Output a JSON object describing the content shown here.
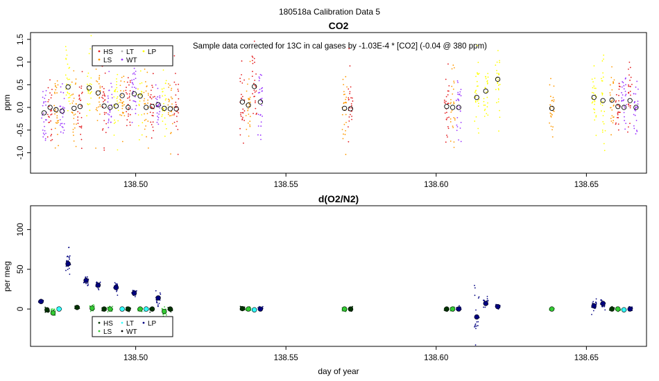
{
  "figure": {
    "suptitle": "180518a   Calibration Data 5",
    "xlabel": "day of year"
  },
  "legend": {
    "entries": [
      {
        "key": "HS",
        "label": "HS",
        "color": "#e31a1c"
      },
      {
        "key": "LT",
        "label": "LT",
        "color": "#b3b3b3"
      },
      {
        "key": "LP",
        "label": "LP",
        "color": "#ffff00"
      },
      {
        "key": "LS",
        "label": "LS",
        "color": "#ff9900"
      },
      {
        "key": "WT",
        "label": "WT",
        "color": "#9933ff"
      }
    ],
    "entries_o2": [
      {
        "key": "HS",
        "label": "HS",
        "color": "#003300"
      },
      {
        "key": "LT",
        "label": "LT",
        "color": "#33ffff"
      },
      {
        "key": "LP",
        "label": "LP",
        "color": "#000080"
      },
      {
        "key": "LS",
        "label": "LS",
        "color": "#33cc33"
      },
      {
        "key": "WT",
        "label": "WT",
        "color": "#000000"
      }
    ]
  },
  "chart_data": [
    {
      "type": "scatter",
      "title": "CO2",
      "annotation": "Sample data corrected for 13C in cal gases by -1.03E-4 * [CO2] (-0.04 @ 380 ppm)",
      "xlabel": "",
      "ylabel": "ppm",
      "xlim": [
        138.465,
        138.67
      ],
      "ylim": [
        -1.45,
        1.65
      ],
      "xticks": [
        138.5,
        138.55,
        138.6,
        138.65
      ],
      "xtick_labels": [
        "138.50",
        "138.55",
        "138.60",
        "138.65"
      ],
      "yticks": [
        -1.0,
        -0.5,
        0.0,
        0.5,
        1.0,
        1.5
      ],
      "ytick_labels": [
        "-1.0",
        "-0.5",
        "0.0",
        "0.5",
        "1.0",
        "1.5"
      ],
      "clusters": [
        {
          "x": 138.4695,
          "color": "#9933ff",
          "mean": -0.12,
          "sd": 0.38
        },
        {
          "x": 138.4715,
          "color": "#e31a1c",
          "mean": 0.0,
          "sd": 0.4
        },
        {
          "x": 138.4735,
          "color": "#ff9900",
          "mean": -0.05,
          "sd": 0.35
        },
        {
          "x": 138.4755,
          "color": "#9933ff",
          "mean": -0.08,
          "sd": 0.32
        },
        {
          "x": 138.4775,
          "color": "#ffff00",
          "mean": 0.45,
          "sd": 0.42
        },
        {
          "x": 138.4795,
          "color": "#ff9900",
          "mean": -0.02,
          "sd": 0.38
        },
        {
          "x": 138.4815,
          "color": "#e31a1c",
          "mean": 0.02,
          "sd": 0.4
        },
        {
          "x": 138.4845,
          "color": "#ffff00",
          "mean": 0.43,
          "sd": 0.4
        },
        {
          "x": 138.4875,
          "color": "#ff9900",
          "mean": 0.32,
          "sd": 0.35
        },
        {
          "x": 138.4895,
          "color": "#e31a1c",
          "mean": 0.03,
          "sd": 0.38
        },
        {
          "x": 138.4915,
          "color": "#9933ff",
          "mean": 0.0,
          "sd": 0.35
        },
        {
          "x": 138.4935,
          "color": "#ffff00",
          "mean": 0.03,
          "sd": 0.4
        },
        {
          "x": 138.4955,
          "color": "#ff9900",
          "mean": 0.26,
          "sd": 0.35
        },
        {
          "x": 138.4975,
          "color": "#e31a1c",
          "mean": 0.0,
          "sd": 0.38
        },
        {
          "x": 138.4995,
          "color": "#9933ff",
          "mean": 0.3,
          "sd": 0.35
        },
        {
          "x": 138.5015,
          "color": "#ffff00",
          "mean": 0.25,
          "sd": 0.4
        },
        {
          "x": 138.5035,
          "color": "#ff9900",
          "mean": 0.0,
          "sd": 0.35
        },
        {
          "x": 138.5055,
          "color": "#e31a1c",
          "mean": 0.02,
          "sd": 0.38
        },
        {
          "x": 138.5075,
          "color": "#9933ff",
          "mean": 0.06,
          "sd": 0.35
        },
        {
          "x": 138.5095,
          "color": "#ffff00",
          "mean": -0.02,
          "sd": 0.4
        },
        {
          "x": 138.5115,
          "color": "#ff9900",
          "mean": -0.03,
          "sd": 0.35
        },
        {
          "x": 138.5135,
          "color": "#e31a1c",
          "mean": -0.03,
          "sd": 0.38
        },
        {
          "x": 138.5355,
          "color": "#e31a1c",
          "mean": 0.12,
          "sd": 0.38
        },
        {
          "x": 138.5375,
          "color": "#ff9900",
          "mean": 0.05,
          "sd": 0.4
        },
        {
          "x": 138.5395,
          "color": "#e31a1c",
          "mean": 0.46,
          "sd": 0.4
        },
        {
          "x": 138.5415,
          "color": "#9933ff",
          "mean": 0.12,
          "sd": 0.4
        },
        {
          "x": 138.5695,
          "color": "#ff9900",
          "mean": -0.02,
          "sd": 0.42
        },
        {
          "x": 138.5715,
          "color": "#e31a1c",
          "mean": -0.03,
          "sd": 0.42
        },
        {
          "x": 138.6035,
          "color": "#e31a1c",
          "mean": 0.02,
          "sd": 0.4
        },
        {
          "x": 138.6055,
          "color": "#ff9900",
          "mean": 0.0,
          "sd": 0.42
        },
        {
          "x": 138.6075,
          "color": "#9933ff",
          "mean": 0.0,
          "sd": 0.36
        },
        {
          "x": 138.6135,
          "color": "#ffff00",
          "mean": 0.22,
          "sd": 0.45
        },
        {
          "x": 138.6165,
          "color": "#ffff00",
          "mean": 0.36,
          "sd": 0.42
        },
        {
          "x": 138.6205,
          "color": "#ffff00",
          "mean": 0.62,
          "sd": 0.4
        },
        {
          "x": 138.6385,
          "color": "#ff9900",
          "mean": -0.02,
          "sd": 0.35
        },
        {
          "x": 138.6525,
          "color": "#ffff00",
          "mean": 0.22,
          "sd": 0.42
        },
        {
          "x": 138.6555,
          "color": "#ffff00",
          "mean": 0.15,
          "sd": 0.42
        },
        {
          "x": 138.6585,
          "color": "#ff9900",
          "mean": 0.16,
          "sd": 0.4
        },
        {
          "x": 138.6605,
          "color": "#e31a1c",
          "mean": 0.02,
          "sd": 0.38
        },
        {
          "x": 138.6625,
          "color": "#9933ff",
          "mean": 0.0,
          "sd": 0.36
        },
        {
          "x": 138.6645,
          "color": "#e31a1c",
          "mean": 0.15,
          "sd": 0.38
        },
        {
          "x": 138.6665,
          "color": "#9933ff",
          "mean": 0.0,
          "sd": 0.36
        }
      ]
    },
    {
      "type": "scatter",
      "title": "d(O2/N2)",
      "xlabel": "day of year",
      "ylabel": "per meg",
      "xlim": [
        138.465,
        138.67
      ],
      "ylim": [
        -47,
        130
      ],
      "xticks": [
        138.5,
        138.55,
        138.6,
        138.65
      ],
      "xtick_labels": [
        "138.50",
        "138.55",
        "138.60",
        "138.65"
      ],
      "yticks": [
        0,
        50,
        100
      ],
      "ytick_labels": [
        "0",
        "50",
        "100"
      ],
      "clusters": [
        {
          "x": 138.4685,
          "color": "#000080",
          "mean": 9.5,
          "sd": 1.0
        },
        {
          "x": 138.4705,
          "color": "#003300",
          "mean": -1.0,
          "sd": 1.5
        },
        {
          "x": 138.4725,
          "color": "#33cc33",
          "mean": -5.0,
          "sd": 3.5
        },
        {
          "x": 138.4745,
          "color": "#33ffff",
          "mean": 0.0,
          "sd": 1.0
        },
        {
          "x": 138.4775,
          "color": "#000080",
          "mean": 57.0,
          "sd": 9.0
        },
        {
          "x": 138.4805,
          "color": "#003300",
          "mean": 2.0,
          "sd": 1.2
        },
        {
          "x": 138.4835,
          "color": "#000080",
          "mean": 36.0,
          "sd": 2.5
        },
        {
          "x": 138.4855,
          "color": "#33cc33",
          "mean": 1.0,
          "sd": 2.0
        },
        {
          "x": 138.4875,
          "color": "#000080",
          "mean": 30.0,
          "sd": 3.0
        },
        {
          "x": 138.4895,
          "color": "#003300",
          "mean": 0.0,
          "sd": 1.2
        },
        {
          "x": 138.4915,
          "color": "#33cc33",
          "mean": 0.0,
          "sd": 1.5
        },
        {
          "x": 138.4935,
          "color": "#000080",
          "mean": 27.0,
          "sd": 4.0
        },
        {
          "x": 138.4955,
          "color": "#33ffff",
          "mean": 0.0,
          "sd": 1.0
        },
        {
          "x": 138.4975,
          "color": "#003300",
          "mean": 0.0,
          "sd": 1.2
        },
        {
          "x": 138.4995,
          "color": "#000080",
          "mean": 20.0,
          "sd": 2.0
        },
        {
          "x": 138.5015,
          "color": "#33cc33",
          "mean": 0.0,
          "sd": 1.5
        },
        {
          "x": 138.5035,
          "color": "#33ffff",
          "mean": 0.0,
          "sd": 1.0
        },
        {
          "x": 138.5055,
          "color": "#003300",
          "mean": 0.0,
          "sd": 1.2
        },
        {
          "x": 138.5075,
          "color": "#000080",
          "mean": 14.0,
          "sd": 5.0
        },
        {
          "x": 138.5095,
          "color": "#33cc33",
          "mean": -3.0,
          "sd": 3.0
        },
        {
          "x": 138.5115,
          "color": "#003300",
          "mean": 0.0,
          "sd": 1.2
        },
        {
          "x": 138.5355,
          "color": "#003300",
          "mean": 0.5,
          "sd": 1.2
        },
        {
          "x": 138.5375,
          "color": "#33cc33",
          "mean": 0.0,
          "sd": 1.5
        },
        {
          "x": 138.5395,
          "color": "#33ffff",
          "mean": -1.0,
          "sd": 1.0
        },
        {
          "x": 138.5415,
          "color": "#000080",
          "mean": 0.0,
          "sd": 1.5
        },
        {
          "x": 138.5695,
          "color": "#33cc33",
          "mean": 0.0,
          "sd": 1.5
        },
        {
          "x": 138.5715,
          "color": "#003300",
          "mean": 0.0,
          "sd": 1.2
        },
        {
          "x": 138.6035,
          "color": "#003300",
          "mean": 0.0,
          "sd": 1.2
        },
        {
          "x": 138.6055,
          "color": "#33cc33",
          "mean": 0.0,
          "sd": 1.5
        },
        {
          "x": 138.6075,
          "color": "#000080",
          "mean": 0.0,
          "sd": 1.5
        },
        {
          "x": 138.6135,
          "color": "#000080",
          "mean": -10.0,
          "sd": 22.0
        },
        {
          "x": 138.6165,
          "color": "#000080",
          "mean": 7.0,
          "sd": 4.0
        },
        {
          "x": 138.6205,
          "color": "#000080",
          "mean": 3.0,
          "sd": 1.5
        },
        {
          "x": 138.6385,
          "color": "#33cc33",
          "mean": 0.0,
          "sd": 1.0
        },
        {
          "x": 138.6525,
          "color": "#000080",
          "mean": 4.0,
          "sd": 4.5
        },
        {
          "x": 138.6555,
          "color": "#000080",
          "mean": 7.0,
          "sd": 3.5
        },
        {
          "x": 138.6585,
          "color": "#003300",
          "mean": 0.0,
          "sd": 1.2
        },
        {
          "x": 138.6605,
          "color": "#33cc33",
          "mean": 0.0,
          "sd": 1.5
        },
        {
          "x": 138.6625,
          "color": "#33ffff",
          "mean": -1.0,
          "sd": 1.0
        },
        {
          "x": 138.6645,
          "color": "#000080",
          "mean": 0.0,
          "sd": 1.5
        }
      ]
    }
  ]
}
